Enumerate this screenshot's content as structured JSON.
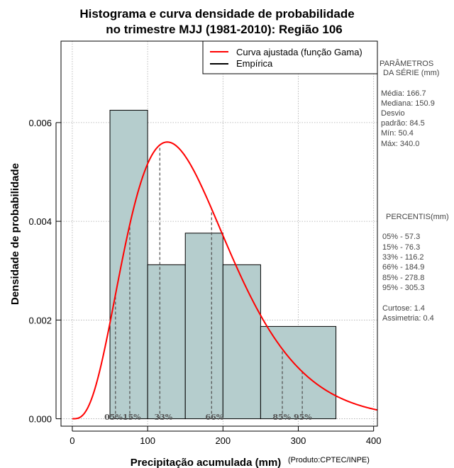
{
  "chart_data": {
    "type": "histogram",
    "title_line1": "Histograma e curva densidade de probabilidade",
    "title_line2": "no trimestre MJJ (1981-2010): Região 106",
    "xlabel": "Precipitação acumulada (mm)",
    "ylabel": "Densidade de probabilidade",
    "credit": "(Produto:CPTEC/INPE)",
    "xlim": [
      -15,
      405
    ],
    "ylim": [
      -0.00015,
      0.00765
    ],
    "x_ticks": [
      0,
      100,
      200,
      300,
      400
    ],
    "x_tick_labels": [
      "0",
      "100",
      "200",
      "300",
      "400"
    ],
    "y_ticks": [
      0.0,
      0.002,
      0.004,
      0.006
    ],
    "y_tick_labels": [
      "0.000",
      "0.002",
      "0.004",
      "0.006"
    ],
    "grid": true,
    "bins": [
      {
        "start": 50,
        "end": 100,
        "density": 0.00625
      },
      {
        "start": 100,
        "end": 150,
        "density": 0.00312
      },
      {
        "start": 150,
        "end": 200,
        "density": 0.00376
      },
      {
        "start": 200,
        "end": 250,
        "density": 0.00312
      },
      {
        "start": 250,
        "end": 350,
        "density": 0.00187
      }
    ],
    "gamma_fit": {
      "shape": 4.3,
      "scale": 38.2
    },
    "percentile_lines": [
      {
        "label": "05%",
        "x": 57.3
      },
      {
        "label": "15%",
        "x": 76.3
      },
      {
        "label": "33%",
        "x": 116.2
      },
      {
        "label": "66%",
        "x": 184.9
      },
      {
        "label": "85%",
        "x": 278.8
      },
      {
        "label": "95%",
        "x": 305.3
      }
    ],
    "legend": [
      {
        "label": "Curva ajustada (função Gama)",
        "color": "#ff0000"
      },
      {
        "label": "Empírica",
        "color": "#000000"
      }
    ],
    "colors": {
      "bar_fill": "#b5cdcd",
      "curve": "#ff0000",
      "grid": "#aaaaaa",
      "percentile": "#555555"
    }
  },
  "side_panel": {
    "params_header1": "PARÂMETROS",
    "params_header2": "DA SÉRIE (mm)",
    "media": "Média:  166.7",
    "mediana": "Mediana:  150.9",
    "desvio1": "Desvio",
    "desvio2": "padrão:  84.5",
    "min": "Mín:  50.4",
    "max": "Máx:  340.0",
    "percentis_header": "PERCENTIS(mm)",
    "p05": "05% -  57.3",
    "p15": "15% -  76.3",
    "p33": "33% -  116.2",
    "p66": "66% -  184.9",
    "p85": "85% -  278.8",
    "p95": "95% -  305.3",
    "curtose": "Curtose:  1.4",
    "assimetria": "Assimetria:  0.4"
  }
}
